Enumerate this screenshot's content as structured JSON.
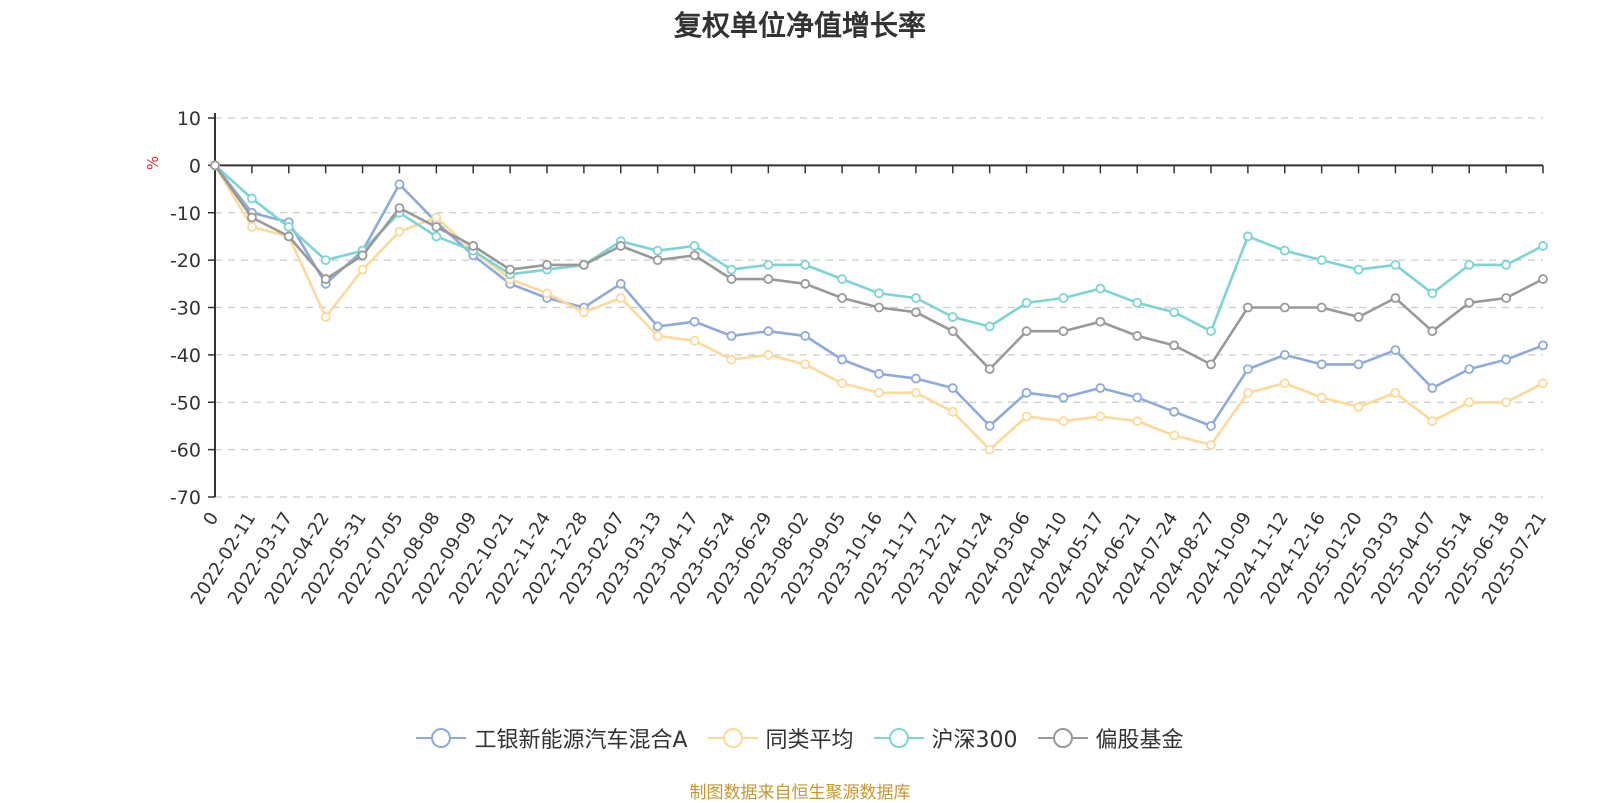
{
  "title": "复权单位净值增长率",
  "source_text": "制图数据来自恒生聚源数据库",
  "chart_data": {
    "type": "line",
    "title": "复权单位净值增长率",
    "ylabel": "%",
    "ylim": [
      -70,
      10
    ],
    "yticks": [
      10,
      0,
      -10,
      -20,
      -30,
      -40,
      -50,
      -60,
      -70
    ],
    "grid": true,
    "legend_position": "bottom",
    "x_categories": [
      "0",
      "2022-02-11",
      "2022-03-17",
      "2022-04-22",
      "2022-05-31",
      "2022-07-05",
      "2022-08-08",
      "2022-09-09",
      "2022-10-21",
      "2022-11-24",
      "2022-12-28",
      "2023-02-07",
      "2023-03-13",
      "2023-04-17",
      "2023-05-24",
      "2023-06-29",
      "2023-08-02",
      "2023-09-05",
      "2023-10-16",
      "2023-11-17",
      "2023-12-21",
      "2024-01-24",
      "2024-03-06",
      "2024-04-10",
      "2024-05-17",
      "2024-06-21",
      "2024-07-24",
      "2024-08-27",
      "2024-10-09",
      "2024-11-12",
      "2024-12-16",
      "2025-01-20",
      "2025-03-03",
      "2025-04-07",
      "2025-05-14",
      "2025-06-18",
      "2025-07-21"
    ],
    "series": [
      {
        "name": "工银新能源汽车混合A",
        "color": "#8eaadb",
        "values": [
          0,
          -10,
          -12,
          -25,
          -18,
          -4,
          -12,
          -19,
          -25,
          -28,
          -30,
          -25,
          -34,
          -33,
          -36,
          -35,
          -36,
          -41,
          -44,
          -45,
          -47,
          -55,
          -48,
          -49,
          -47,
          -49,
          -52,
          -55,
          -43,
          -40,
          -42,
          -42,
          -39,
          -47,
          -43,
          -41,
          -38
        ]
      },
      {
        "name": "同类平均",
        "color": "#fdd99b",
        "values": [
          0,
          -13,
          -15,
          -32,
          -22,
          -14,
          -11,
          -18,
          -24,
          -27,
          -31,
          -28,
          -36,
          -37,
          -41,
          -40,
          -42,
          -46,
          -48,
          -48,
          -52,
          -60,
          -53,
          -54,
          -53,
          -54,
          -57,
          -59,
          -48,
          -46,
          -49,
          -51,
          -48,
          -54,
          -50,
          -50,
          -46
        ]
      },
      {
        "name": "沪深300",
        "color": "#7ed3d4",
        "values": [
          0,
          -7,
          -13,
          -20,
          -18,
          -10,
          -15,
          -18,
          -23,
          -22,
          -21,
          -16,
          -18,
          -17,
          -22,
          -21,
          -21,
          -24,
          -27,
          -28,
          -32,
          -34,
          -29,
          -28,
          -26,
          -29,
          -31,
          -35,
          -15,
          -18,
          -20,
          -22,
          -21,
          -27,
          -21,
          -21,
          -17
        ]
      },
      {
        "name": "偏股基金",
        "color": "#999999",
        "values": [
          0,
          -11,
          -15,
          -24,
          -19,
          -9,
          -13,
          -17,
          -22,
          -21,
          -21,
          -17,
          -20,
          -19,
          -24,
          -24,
          -25,
          -28,
          -30,
          -31,
          -35,
          -43,
          -35,
          -35,
          -33,
          -36,
          -38,
          -42,
          -30,
          -30,
          -30,
          -32,
          -28,
          -35,
          -29,
          -28,
          -24
        ]
      }
    ]
  }
}
